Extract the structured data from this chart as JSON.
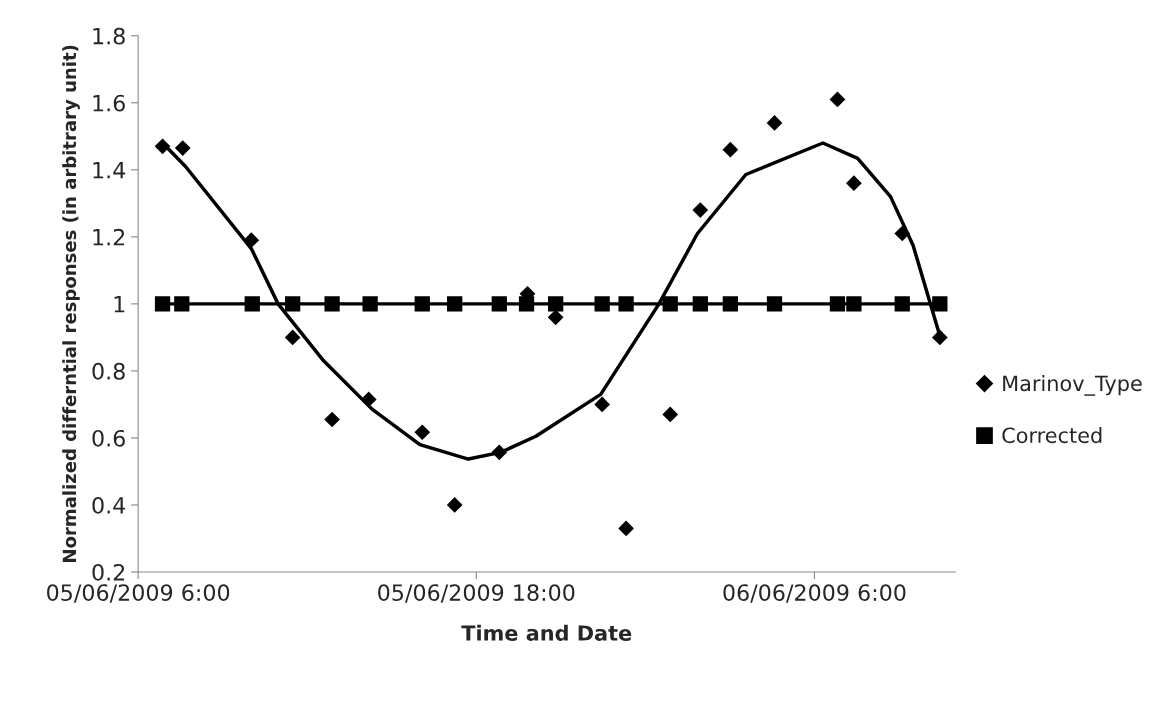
{
  "chart_data": {
    "type": "scatter",
    "xlabel": "Time and Date",
    "ylabel": "Normalized differntial responses (in arbitrary unit)",
    "xlim": [
      "2009-06-05T06:00",
      "2009-06-06T11:00"
    ],
    "xticks": [
      {
        "value": "2009-06-05T06:00",
        "label": "05/06/2009 6:00"
      },
      {
        "value": "2009-06-05T18:00",
        "label": "05/06/2009 18:00"
      },
      {
        "value": "2009-06-06T06:00",
        "label": "06/06/2009 6:00"
      }
    ],
    "ylim": [
      0.2,
      1.8
    ],
    "yticks": [
      0.2,
      0.4,
      0.6,
      0.8,
      1,
      1.2,
      1.4,
      1.6,
      1.8
    ],
    "grid": false,
    "legend": "right",
    "series": [
      {
        "name": "Marinov_Type",
        "marker": "diamond",
        "color": "#000000",
        "x": [
          "2009-06-05T06:52",
          "2009-06-05T07:35",
          "2009-06-05T10:01",
          "2009-06-05T11:29",
          "2009-06-05T12:53",
          "2009-06-05T14:11",
          "2009-06-05T16:05",
          "2009-06-05T17:14",
          "2009-06-05T18:49",
          "2009-06-05T19:49",
          "2009-06-05T20:49",
          "2009-06-05T22:28",
          "2009-06-05T23:19",
          "2009-06-06T00:53",
          "2009-06-06T01:57",
          "2009-06-06T03:01",
          "2009-06-06T04:35",
          "2009-06-06T06:49",
          "2009-06-06T07:24",
          "2009-06-06T09:07",
          "2009-06-06T10:27"
        ],
        "values": [
          1.47,
          1.465,
          1.19,
          0.9,
          0.655,
          0.715,
          0.617,
          0.4,
          0.557,
          1.03,
          0.96,
          0.7,
          0.33,
          0.67,
          1.28,
          1.46,
          1.54,
          1.61,
          1.36,
          1.21,
          0.9
        ]
      },
      {
        "name": "Corrected",
        "type": "line",
        "marker": "square",
        "line_style": "solid",
        "color": "#000000",
        "x": [
          "2009-06-05T06:52",
          "2009-06-05T07:33",
          "2009-06-05T10:03",
          "2009-06-05T11:29",
          "2009-06-05T12:53",
          "2009-06-05T14:14",
          "2009-06-05T16:05",
          "2009-06-05T17:14",
          "2009-06-05T18:49",
          "2009-06-05T19:47",
          "2009-06-05T20:49",
          "2009-06-05T22:28",
          "2009-06-05T23:19",
          "2009-06-06T00:53",
          "2009-06-06T01:57",
          "2009-06-06T03:01",
          "2009-06-06T04:35",
          "2009-06-06T06:49",
          "2009-06-06T07:24",
          "2009-06-06T09:07",
          "2009-06-06T10:27"
        ],
        "values": [
          1,
          1,
          1,
          1,
          1,
          1,
          1,
          1,
          1,
          1,
          1,
          1,
          1,
          1,
          1,
          1,
          1,
          1,
          1,
          1,
          1
        ]
      },
      {
        "type": "line",
        "marker": "none",
        "line_style": "solid",
        "color": "#000000",
        "x": [
          "2009-06-05T06:52",
          "2009-06-05T07:41",
          "2009-06-05T10:01",
          "2009-06-05T10:58",
          "2009-06-05T12:35",
          "2009-06-05T14:18",
          "2009-06-05T16:00",
          "2009-06-05T17:43",
          "2009-06-05T18:52",
          "2009-06-05T20:07",
          "2009-06-05T22:25",
          "2009-06-06T00:29",
          "2009-06-06T01:51",
          "2009-06-06T03:34",
          "2009-06-06T06:18",
          "2009-06-06T07:32",
          "2009-06-06T08:42",
          "2009-06-06T09:30",
          "2009-06-06T10:27"
        ],
        "values": [
          1.48,
          1.41,
          1.165,
          1.0,
          0.83,
          0.686,
          0.58,
          0.537,
          0.557,
          0.605,
          0.73,
          1.0,
          1.21,
          1.386,
          1.48,
          1.434,
          1.32,
          1.175,
          0.905
        ]
      }
    ]
  }
}
